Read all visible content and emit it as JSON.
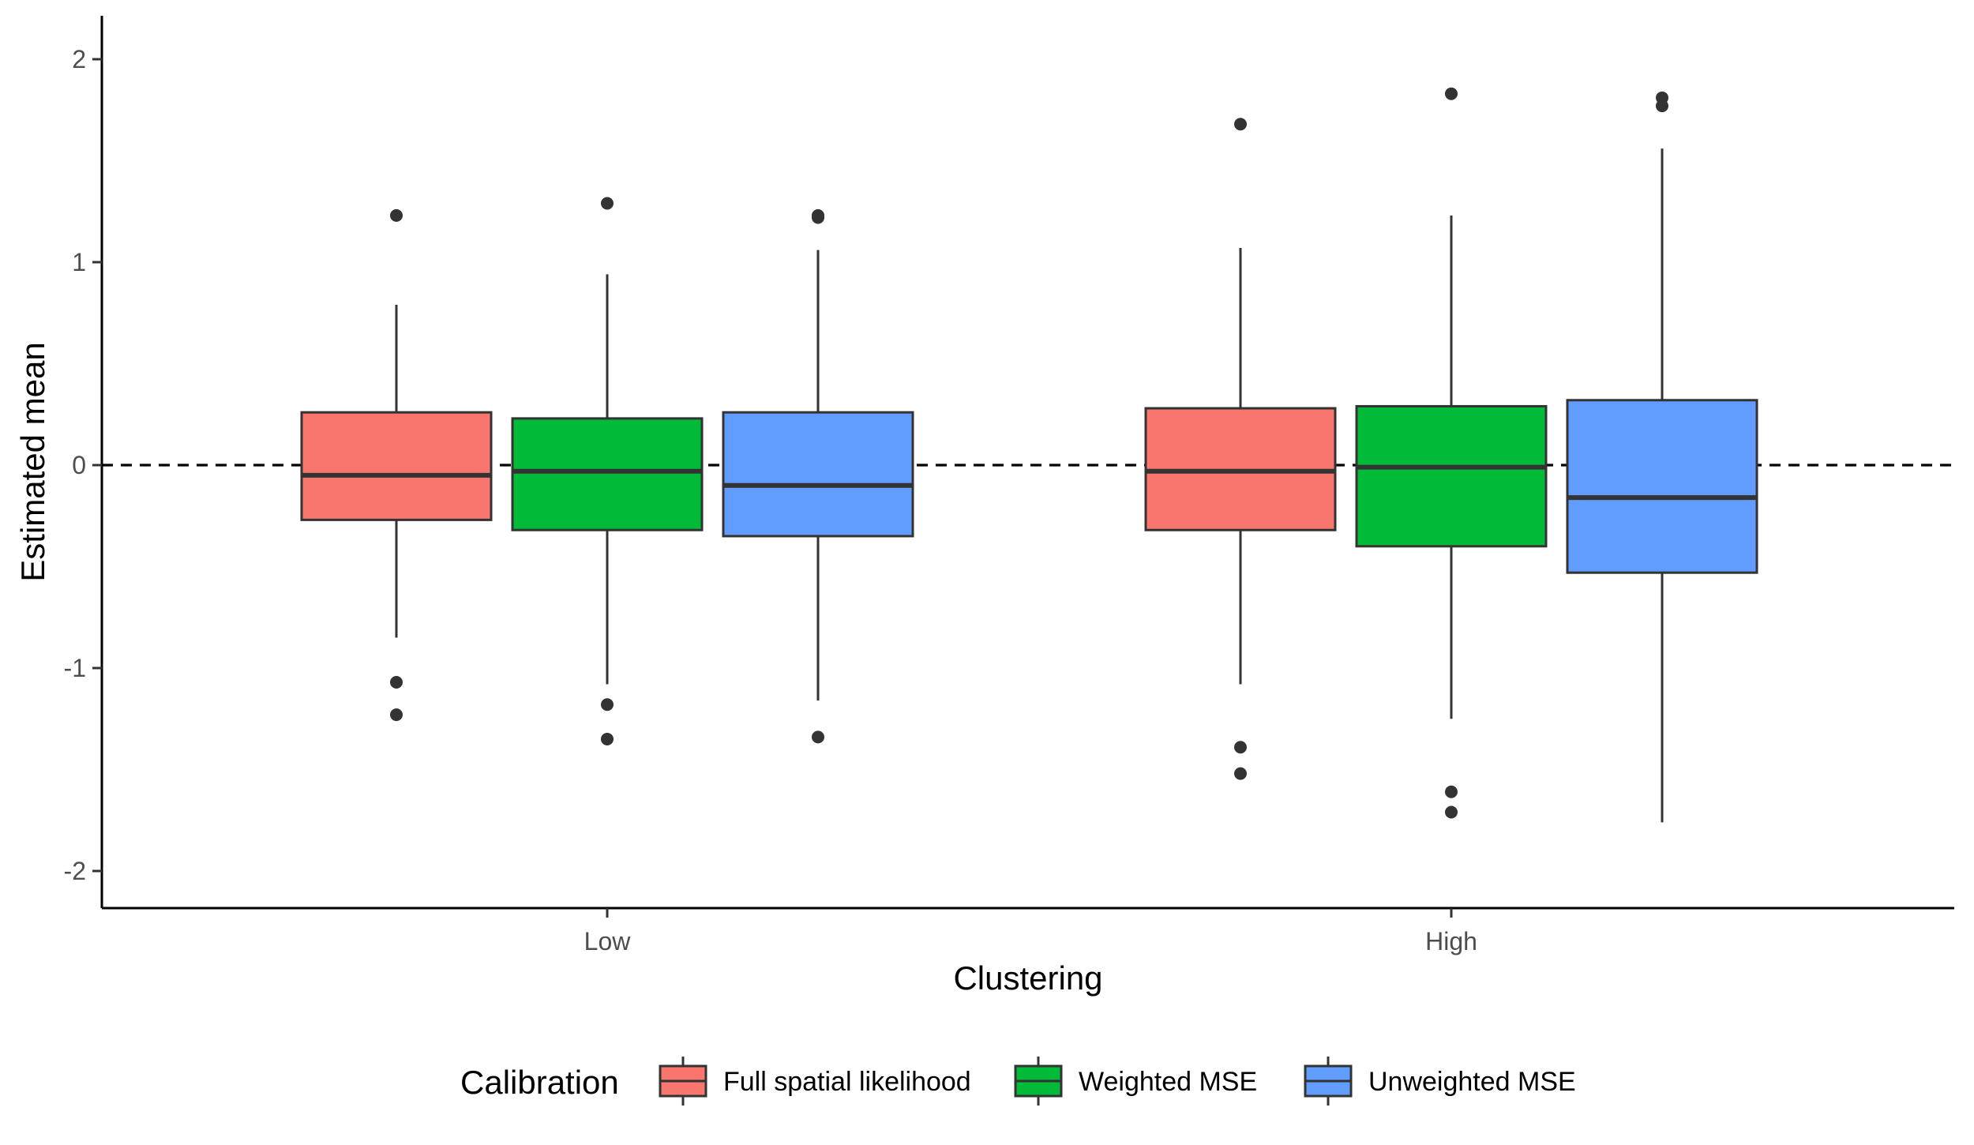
{
  "chart_data": {
    "type": "boxplot",
    "title": "",
    "xlabel": "Clustering",
    "ylabel": "Estimated mean",
    "ylim": [
      -2.2,
      2.2
    ],
    "yticks": [
      -2,
      -1,
      0,
      1,
      2
    ],
    "ytick_labels": [
      "-2",
      "-1",
      "0",
      "1",
      "2"
    ],
    "reference_line": {
      "y": 0,
      "style": "dashed"
    },
    "categories": [
      "Low",
      "High"
    ],
    "legend": {
      "title": "Calibration",
      "position": "bottom"
    },
    "series": [
      {
        "name": "Full spatial likelihood",
        "color": "#F8766D",
        "boxes": [
          {
            "category": "Low",
            "q1": -0.27,
            "median": -0.05,
            "q3": 0.26,
            "whisker_low": -0.85,
            "whisker_high": 0.79,
            "outliers": [
              1.23,
              -1.07,
              -1.23
            ]
          },
          {
            "category": "High",
            "q1": -0.32,
            "median": -0.03,
            "q3": 0.28,
            "whisker_low": -1.08,
            "whisker_high": 1.07,
            "outliers": [
              1.68,
              -1.39,
              -1.52
            ]
          }
        ]
      },
      {
        "name": "Weighted MSE",
        "color": "#00BA38",
        "boxes": [
          {
            "category": "Low",
            "q1": -0.32,
            "median": -0.03,
            "q3": 0.23,
            "whisker_low": -1.08,
            "whisker_high": 0.94,
            "outliers": [
              1.29,
              -1.18,
              -1.35
            ]
          },
          {
            "category": "High",
            "q1": -0.4,
            "median": -0.01,
            "q3": 0.29,
            "whisker_low": -1.25,
            "whisker_high": 1.23,
            "outliers": [
              1.83,
              -1.61,
              -1.71
            ]
          }
        ]
      },
      {
        "name": "Unweighted MSE",
        "color": "#619CFF",
        "boxes": [
          {
            "category": "Low",
            "q1": -0.35,
            "median": -0.1,
            "q3": 0.26,
            "whisker_low": -1.16,
            "whisker_high": 1.06,
            "outliers": [
              1.23,
              1.22,
              -1.34
            ]
          },
          {
            "category": "High",
            "q1": -0.53,
            "median": -0.16,
            "q3": 0.32,
            "whisker_low": -1.76,
            "whisker_high": 1.56,
            "outliers": [
              1.81,
              1.77
            ]
          }
        ]
      }
    ]
  }
}
